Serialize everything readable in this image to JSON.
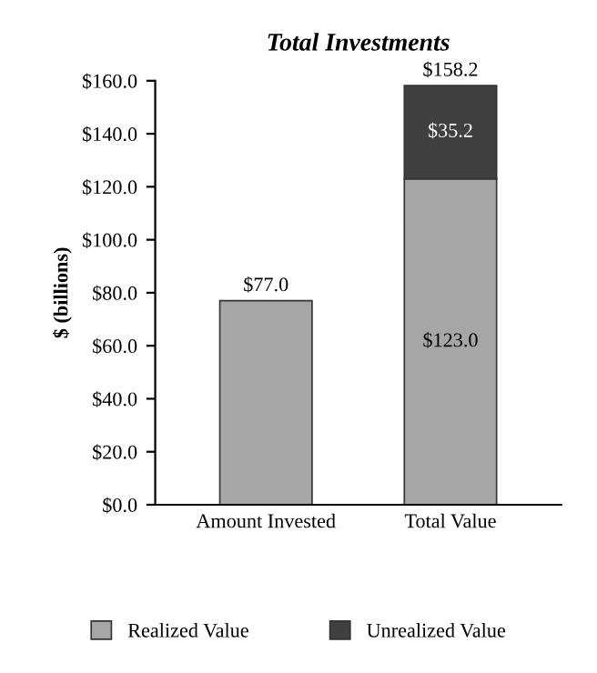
{
  "chart_data": {
    "type": "bar",
    "title": "Total Investments",
    "ylabel": "$ (billions)",
    "categories": [
      "Amount Invested",
      "Total Value"
    ],
    "series": [
      {
        "name": "Realized Value",
        "color": "#a6a6a6",
        "values": [
          77.0,
          123.0
        ],
        "value_labels": [
          null,
          "$123.0"
        ]
      },
      {
        "name": "Unrealized Value",
        "color": "#404040",
        "values": [
          null,
          35.2
        ],
        "value_labels": [
          null,
          "$35.2"
        ]
      }
    ],
    "stacked": true,
    "totals": [
      "$77.0",
      "$158.2"
    ],
    "ylim": [
      0,
      160
    ],
    "yticks": [
      {
        "value": 0,
        "label": "$0.0"
      },
      {
        "value": 20,
        "label": "$20.0"
      },
      {
        "value": 40,
        "label": "$40.0"
      },
      {
        "value": 60,
        "label": "$60.0"
      },
      {
        "value": 80,
        "label": "$80.0"
      },
      {
        "value": 100,
        "label": "$100.0"
      },
      {
        "value": 120,
        "label": "$120.0"
      },
      {
        "value": 140,
        "label": "$140.0"
      },
      {
        "value": 160,
        "label": "$160.0"
      }
    ],
    "grid": false,
    "legend": "bottom"
  }
}
